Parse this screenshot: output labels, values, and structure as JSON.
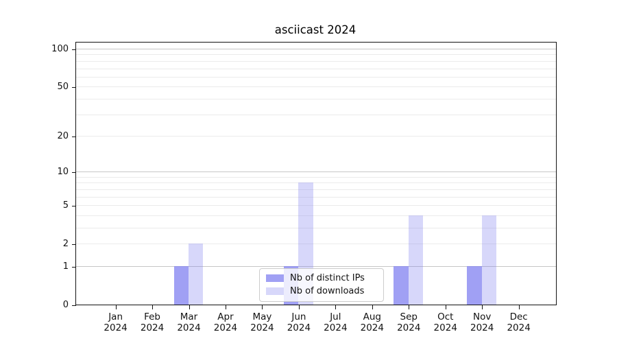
{
  "title": "asciicast 2024",
  "colors": {
    "bar_ips": "rgba(124,124,240,0.72)",
    "bar_downloads": "rgba(124,124,240,0.30)",
    "grid_major": "#c6c6c6",
    "grid_minor": "#ebebeb",
    "spine": "#111111",
    "text": "#111111",
    "legend_border": "#cccccc",
    "legend_bg": "rgba(255,255,255,0.8)"
  },
  "chart_data": {
    "type": "bar",
    "title": "asciicast 2024",
    "categories": [
      "Jan",
      "Feb",
      "Mar",
      "Apr",
      "May",
      "Jun",
      "Jul",
      "Aug",
      "Sep",
      "Oct",
      "Nov",
      "Dec"
    ],
    "category_year": "2024",
    "series": [
      {
        "name": "Nb of distinct IPs",
        "values": [
          0,
          0,
          1,
          0,
          0,
          1,
          0,
          0,
          1,
          0,
          1,
          0
        ]
      },
      {
        "name": "Nb of downloads",
        "values": [
          0,
          0,
          2,
          0,
          0,
          8,
          0,
          0,
          4,
          0,
          4,
          0
        ]
      }
    ],
    "xlabel": "",
    "ylabel": "",
    "yscale": "log1p",
    "ylim": [
      0,
      112
    ],
    "y_ticks": [
      0,
      1,
      2,
      5,
      10,
      20,
      50,
      100
    ],
    "grid_major_lines": [
      1,
      10,
      100
    ],
    "grid_minor_lines": [
      2,
      3,
      4,
      5,
      6,
      7,
      8,
      9,
      20,
      30,
      40,
      50,
      60,
      70,
      80,
      90
    ],
    "grid": true,
    "legend_position": "lower center"
  },
  "legend": {
    "items": [
      {
        "label": "Nb of distinct IPs"
      },
      {
        "label": "Nb of downloads"
      }
    ]
  }
}
